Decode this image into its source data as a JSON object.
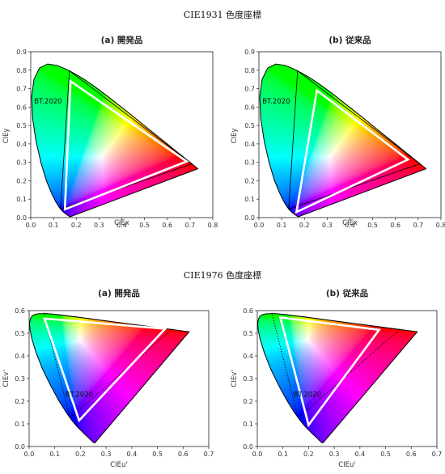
{
  "titles": {
    "cie1931": "CIE1931 色度座標",
    "cie1976": "CIE1976 色度座標"
  },
  "colors": {
    "triangle": "#ffffff",
    "locus_edge": "#000000",
    "bt2020_line": "#000000"
  },
  "chart_data": [
    {
      "type": "scatter",
      "id": "p1931a",
      "title": "(a) 開発品",
      "xlabel": "CIEx",
      "ylabel": "CIEy",
      "xlim": [
        0,
        0.8
      ],
      "ylim": [
        0,
        0.9
      ],
      "xticks": [
        0,
        0.1,
        0.2,
        0.3,
        0.4,
        0.5,
        0.6,
        0.7,
        0.8
      ],
      "yticks": [
        0,
        0.1,
        0.2,
        0.3,
        0.4,
        0.5,
        0.6,
        0.7,
        0.8,
        0.9
      ],
      "tick_format": "1",
      "bt2020_label": "BT.2020",
      "bt2020": [
        [
          0.708,
          0.292
        ],
        [
          0.17,
          0.797
        ],
        [
          0.131,
          0.046
        ]
      ],
      "bt2020_style": "solid",
      "device_gamut": [
        [
          0.685,
          0.305
        ],
        [
          0.175,
          0.74
        ],
        [
          0.15,
          0.045
        ]
      ]
    },
    {
      "type": "scatter",
      "id": "p1931b",
      "title": "(b) 従来品",
      "xlabel": "CIEx",
      "ylabel": "CIEy",
      "xlim": [
        0,
        0.8
      ],
      "ylim": [
        0,
        0.9
      ],
      "xticks": [
        0,
        0.1,
        0.2,
        0.3,
        0.4,
        0.5,
        0.6,
        0.7,
        0.8
      ],
      "yticks": [
        0,
        0.1,
        0.2,
        0.3,
        0.4,
        0.5,
        0.6,
        0.7,
        0.8,
        0.9
      ],
      "tick_format": "1",
      "bt2020_label": "BT.2020",
      "bt2020": [
        [
          0.708,
          0.292
        ],
        [
          0.17,
          0.797
        ],
        [
          0.131,
          0.046
        ]
      ],
      "bt2020_style": "solid",
      "device_gamut": [
        [
          0.655,
          0.315
        ],
        [
          0.255,
          0.69
        ],
        [
          0.165,
          0.03
        ]
      ]
    },
    {
      "type": "scatter",
      "id": "p1976a",
      "title": "(a) 開発品",
      "xlabel": "CIEu'",
      "ylabel": "CIEv'",
      "xlim": [
        0,
        0.7
      ],
      "ylim": [
        0,
        0.6
      ],
      "xticks": [
        0,
        0.1,
        0.2,
        0.3,
        0.4,
        0.5,
        0.6,
        0.7
      ],
      "yticks": [
        0,
        0.1,
        0.2,
        0.3,
        0.4,
        0.5,
        0.6
      ],
      "tick_format": "1",
      "bt2020_label": "BT.2020",
      "bt2020": [
        [
          0.556,
          0.517
        ],
        [
          0.057,
          0.589
        ],
        [
          0.159,
          0.126
        ]
      ],
      "bt2020_style": "dotted",
      "device_gamut": [
        [
          0.53,
          0.52
        ],
        [
          0.06,
          0.565
        ],
        [
          0.195,
          0.115
        ]
      ]
    },
    {
      "type": "scatter",
      "id": "p1976b",
      "title": "(b) 従来品",
      "xlabel": "CIEu'",
      "ylabel": "CIEv'",
      "xlim": [
        0,
        0.7
      ],
      "ylim": [
        0,
        0.6
      ],
      "xticks": [
        0,
        0.1,
        0.2,
        0.3,
        0.4,
        0.5,
        0.6,
        0.7
      ],
      "yticks": [
        0,
        0.1,
        0.2,
        0.3,
        0.4,
        0.5,
        0.6
      ],
      "tick_format": "1",
      "bt2020_label": "BT.2020",
      "bt2020": [
        [
          0.556,
          0.517
        ],
        [
          0.057,
          0.589
        ],
        [
          0.159,
          0.126
        ]
      ],
      "bt2020_style": "dotted",
      "device_gamut": [
        [
          0.475,
          0.515
        ],
        [
          0.09,
          0.57
        ],
        [
          0.2,
          0.095
        ]
      ]
    }
  ]
}
